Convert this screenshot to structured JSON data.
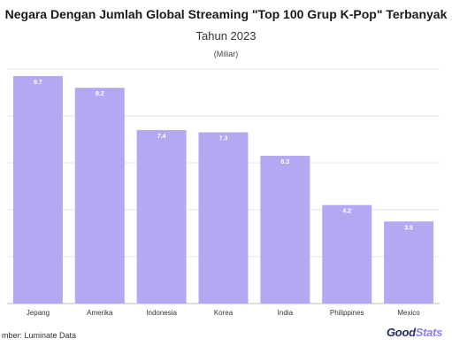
{
  "chart_data": {
    "type": "bar",
    "title": "Negara Dengan Jumlah Global Streaming \"Top 100 Grup K-Pop\" Terbanyak",
    "subtitle": "Tahun 2023",
    "unit": "(Miliar)",
    "categories": [
      "Jepang",
      "Amerika",
      "Indonesia",
      "Korea",
      "India",
      "Philippines",
      "Mexico"
    ],
    "values": [
      9.7,
      9.2,
      7.4,
      7.3,
      6.3,
      4.2,
      3.5
    ],
    "value_labels": [
      "9.7",
      "9.2",
      "7.4",
      "7.3",
      "6.3",
      "4.2",
      "3.5"
    ],
    "xlabel": "",
    "ylabel": "",
    "ylim": [
      0,
      10
    ],
    "grid": true,
    "bar_color": "#b3a8f2",
    "label_color": "#ffffff"
  },
  "source": "mber: Luminate Data",
  "brand": {
    "main": "Good",
    "accent": "Stats",
    "accent_color": "#8e7ff0",
    "main_color": "#1f2f5a"
  }
}
